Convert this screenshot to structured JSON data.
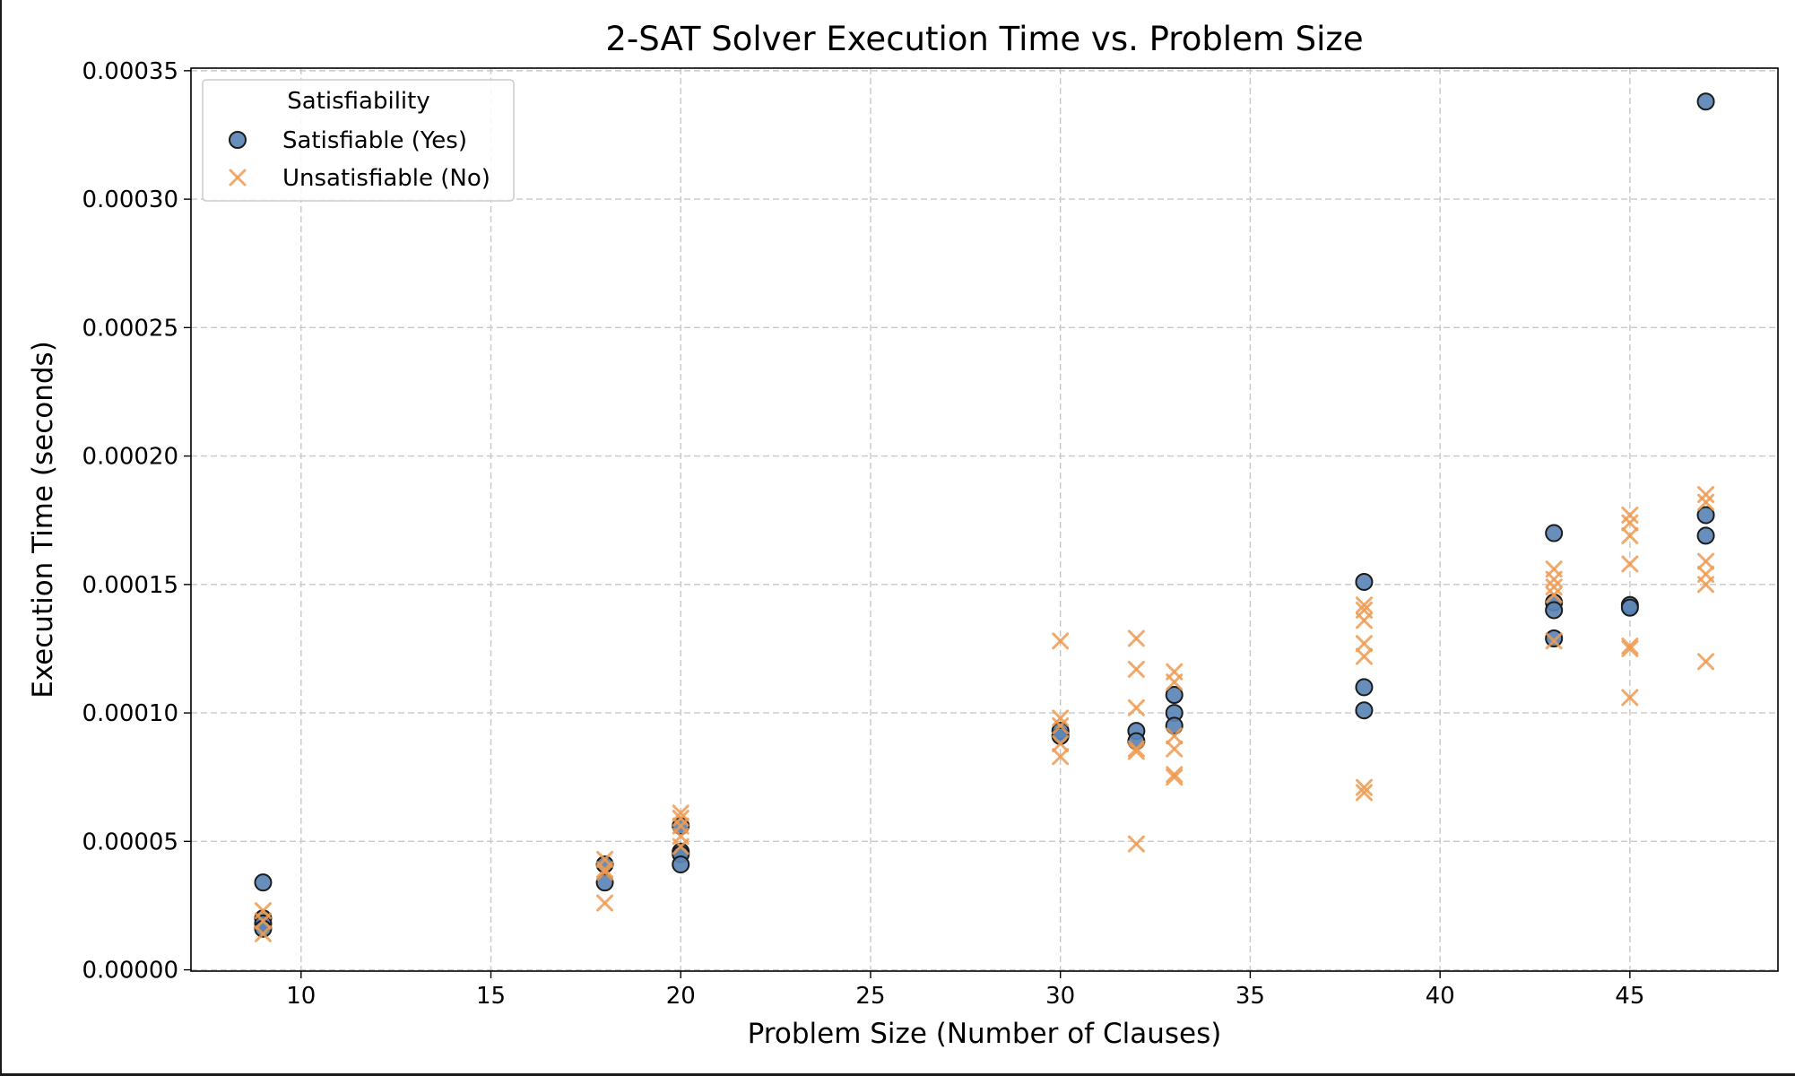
{
  "chart_data": {
    "type": "scatter",
    "title": "2-SAT Solver Execution Time vs. Problem Size",
    "xlabel": "Problem Size (Number of Clauses)",
    "ylabel": "Execution Time (seconds)",
    "xlim": [
      7.1,
      48.9
    ],
    "ylim": [
      -5e-07,
      0.000351
    ],
    "xticks": [
      10,
      15,
      20,
      25,
      30,
      35,
      40,
      45
    ],
    "xtick_labels": [
      "10",
      "15",
      "20",
      "25",
      "30",
      "35",
      "40",
      "45"
    ],
    "yticks": [
      0,
      5e-05,
      0.0001,
      0.00015,
      0.0002,
      0.00025,
      0.0003,
      0.00035
    ],
    "ytick_labels": [
      "0.00000",
      "0.00005",
      "0.00010",
      "0.00015",
      "0.00020",
      "0.00025",
      "0.00030",
      "0.00035"
    ],
    "grid": true,
    "legend": {
      "title": "Satisfiability",
      "position": "upper-left"
    },
    "colors": {
      "yes_fill": "#5b86b5",
      "yes_edge": "#1c1c1c",
      "no": "#ee9b52",
      "grid": "#c8c8c8"
    },
    "series": [
      {
        "name": "Satisfiable (Yes)",
        "marker": "circle",
        "points": [
          [
            9,
            3.4e-05
          ],
          [
            9,
            2e-05
          ],
          [
            9,
            1.8e-05
          ],
          [
            9,
            1.6e-05
          ],
          [
            18,
            3.4e-05
          ],
          [
            18,
            4.1e-05
          ],
          [
            20,
            5.6e-05
          ],
          [
            20,
            4.6e-05
          ],
          [
            20,
            4.5e-05
          ],
          [
            20,
            4.1e-05
          ],
          [
            30,
            9.3e-05
          ],
          [
            30,
            9.1e-05
          ],
          [
            32,
            9.3e-05
          ],
          [
            32,
            8.9e-05
          ],
          [
            33,
            0.000107
          ],
          [
            33,
            0.0001
          ],
          [
            33,
            9.5e-05
          ],
          [
            38,
            0.000151
          ],
          [
            38,
            0.00011
          ],
          [
            38,
            0.000101
          ],
          [
            43,
            0.00017
          ],
          [
            43,
            0.000143
          ],
          [
            43,
            0.00014
          ],
          [
            43,
            0.000129
          ],
          [
            45,
            0.000142
          ],
          [
            45,
            0.000141
          ],
          [
            47,
            0.000338
          ],
          [
            47,
            0.000177
          ],
          [
            47,
            0.000169
          ]
        ]
      },
      {
        "name": "Unsatisfiable (No)",
        "marker": "x",
        "points": [
          [
            9,
            2.3e-05
          ],
          [
            9,
            1.9e-05
          ],
          [
            9,
            1.4e-05
          ],
          [
            18,
            4.3e-05
          ],
          [
            18,
            3.9e-05
          ],
          [
            18,
            3.8e-05
          ],
          [
            18,
            2.6e-05
          ],
          [
            20,
            6.1e-05
          ],
          [
            20,
            5.9e-05
          ],
          [
            20,
            5.6e-05
          ],
          [
            20,
            5.2e-05
          ],
          [
            20,
            4.8e-05
          ],
          [
            30,
            0.000128
          ],
          [
            30,
            9.8e-05
          ],
          [
            30,
            9.5e-05
          ],
          [
            30,
            8.8e-05
          ],
          [
            30,
            8.3e-05
          ],
          [
            32,
            0.000129
          ],
          [
            32,
            0.000117
          ],
          [
            32,
            0.000102
          ],
          [
            32,
            8.6e-05
          ],
          [
            32,
            8.5e-05
          ],
          [
            32,
            4.9e-05
          ],
          [
            33,
            0.000116
          ],
          [
            33,
            0.000112
          ],
          [
            33,
            9.1e-05
          ],
          [
            33,
            8.6e-05
          ],
          [
            33,
            7.6e-05
          ],
          [
            33,
            7.5e-05
          ],
          [
            38,
            0.000142
          ],
          [
            38,
            0.00014
          ],
          [
            38,
            0.000136
          ],
          [
            38,
            0.000127
          ],
          [
            38,
            0.000122
          ],
          [
            38,
            7.1e-05
          ],
          [
            38,
            6.9e-05
          ],
          [
            43,
            0.000156
          ],
          [
            43,
            0.000152
          ],
          [
            43,
            0.000149
          ],
          [
            43,
            0.000146
          ],
          [
            43,
            0.000128
          ],
          [
            45,
            0.000177
          ],
          [
            45,
            0.000174
          ],
          [
            45,
            0.000169
          ],
          [
            45,
            0.000158
          ],
          [
            45,
            0.000126
          ],
          [
            45,
            0.000125
          ],
          [
            45,
            0.000106
          ],
          [
            47,
            0.000185
          ],
          [
            47,
            0.000182
          ],
          [
            47,
            0.000159
          ],
          [
            47,
            0.000154
          ],
          [
            47,
            0.00015
          ],
          [
            47,
            0.00012
          ]
        ]
      }
    ]
  }
}
